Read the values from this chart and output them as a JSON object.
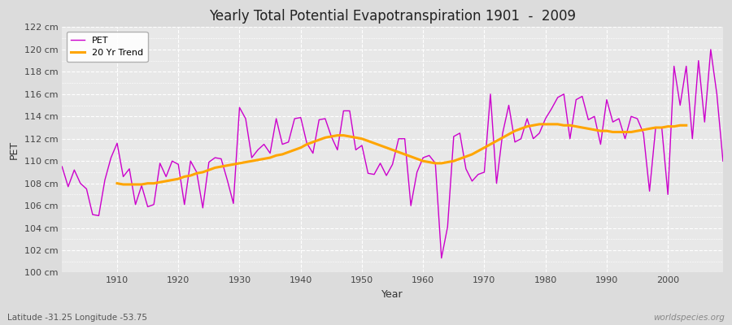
{
  "title": "Yearly Total Potential Evapotranspiration 1901  -  2009",
  "xlabel": "Year",
  "ylabel": "PET",
  "subtitle": "Latitude -31.25 Longitude -53.75",
  "watermark": "worldspecies.org",
  "pet_color": "#cc00cc",
  "trend_color": "#ffa500",
  "bg_color": "#dcdcdc",
  "plot_bg_color": "#e8e8e8",
  "ylim": [
    100,
    122
  ],
  "years": [
    1901,
    1902,
    1903,
    1904,
    1905,
    1906,
    1907,
    1908,
    1909,
    1910,
    1911,
    1912,
    1913,
    1914,
    1915,
    1916,
    1917,
    1918,
    1919,
    1920,
    1921,
    1922,
    1923,
    1924,
    1925,
    1926,
    1927,
    1928,
    1929,
    1930,
    1931,
    1932,
    1933,
    1934,
    1935,
    1936,
    1937,
    1938,
    1939,
    1940,
    1941,
    1942,
    1943,
    1944,
    1945,
    1946,
    1947,
    1948,
    1949,
    1950,
    1951,
    1952,
    1953,
    1954,
    1955,
    1956,
    1957,
    1958,
    1959,
    1960,
    1961,
    1962,
    1963,
    1964,
    1965,
    1966,
    1967,
    1968,
    1969,
    1970,
    1971,
    1972,
    1973,
    1974,
    1975,
    1976,
    1977,
    1978,
    1979,
    1980,
    1981,
    1982,
    1983,
    1984,
    1985,
    1986,
    1987,
    1988,
    1989,
    1990,
    1991,
    1992,
    1993,
    1994,
    1995,
    1996,
    1997,
    1998,
    1999,
    2000,
    2001,
    2002,
    2003,
    2004,
    2005,
    2006,
    2007,
    2008,
    2009
  ],
  "pet_values": [
    109.5,
    107.7,
    109.2,
    108.0,
    107.5,
    105.2,
    105.1,
    108.3,
    110.3,
    111.6,
    108.6,
    109.3,
    106.1,
    107.8,
    105.9,
    106.1,
    109.8,
    108.6,
    110.0,
    109.7,
    106.1,
    110.0,
    109.0,
    105.8,
    109.9,
    110.3,
    110.2,
    108.3,
    106.2,
    114.8,
    113.8,
    110.3,
    111.0,
    111.5,
    110.7,
    113.8,
    111.5,
    111.7,
    113.8,
    113.9,
    111.6,
    110.7,
    113.7,
    113.8,
    112.2,
    111.0,
    114.5,
    114.5,
    111.0,
    111.4,
    108.9,
    108.8,
    109.8,
    108.7,
    109.7,
    112.0,
    112.0,
    106.0,
    109.0,
    110.3,
    110.5,
    109.8,
    101.3,
    104.1,
    112.2,
    112.5,
    109.3,
    108.2,
    108.8,
    109.0,
    116.0,
    108.0,
    112.5,
    115.0,
    111.7,
    112.0,
    113.8,
    112.0,
    112.5,
    113.8,
    114.7,
    115.7,
    116.0,
    112.0,
    115.5,
    115.8,
    113.7,
    114.0,
    111.5,
    115.5,
    113.5,
    113.8,
    112.0,
    114.0,
    113.8,
    112.5,
    107.3,
    113.0,
    113.0,
    107.0,
    118.5,
    115.0,
    118.5,
    112.0,
    119.0,
    113.5,
    120.0,
    116.0,
    110.0
  ],
  "trend_values": [
    null,
    null,
    null,
    null,
    null,
    null,
    null,
    null,
    null,
    108.0,
    107.9,
    107.9,
    107.9,
    107.9,
    108.0,
    108.0,
    108.1,
    108.2,
    108.3,
    108.4,
    108.6,
    108.7,
    108.9,
    109.0,
    109.2,
    109.4,
    109.5,
    109.6,
    109.7,
    109.8,
    109.9,
    110.0,
    110.1,
    110.2,
    110.3,
    110.5,
    110.6,
    110.8,
    111.0,
    111.2,
    111.5,
    111.7,
    111.9,
    112.1,
    112.2,
    112.3,
    112.3,
    112.2,
    112.1,
    112.0,
    111.8,
    111.6,
    111.4,
    111.2,
    111.0,
    110.8,
    110.6,
    110.4,
    110.2,
    110.0,
    109.9,
    109.8,
    109.8,
    109.9,
    110.0,
    110.2,
    110.4,
    110.6,
    110.9,
    111.2,
    111.5,
    111.8,
    112.1,
    112.4,
    112.7,
    112.9,
    113.1,
    113.2,
    113.3,
    113.3,
    113.3,
    113.3,
    113.2,
    113.2,
    113.1,
    113.0,
    112.9,
    112.8,
    112.7,
    112.7,
    112.6,
    112.6,
    112.6,
    112.6,
    112.7,
    112.8,
    112.9,
    113.0,
    113.0,
    113.1,
    113.1,
    113.2,
    113.2,
    null,
    null,
    null,
    null,
    null
  ]
}
